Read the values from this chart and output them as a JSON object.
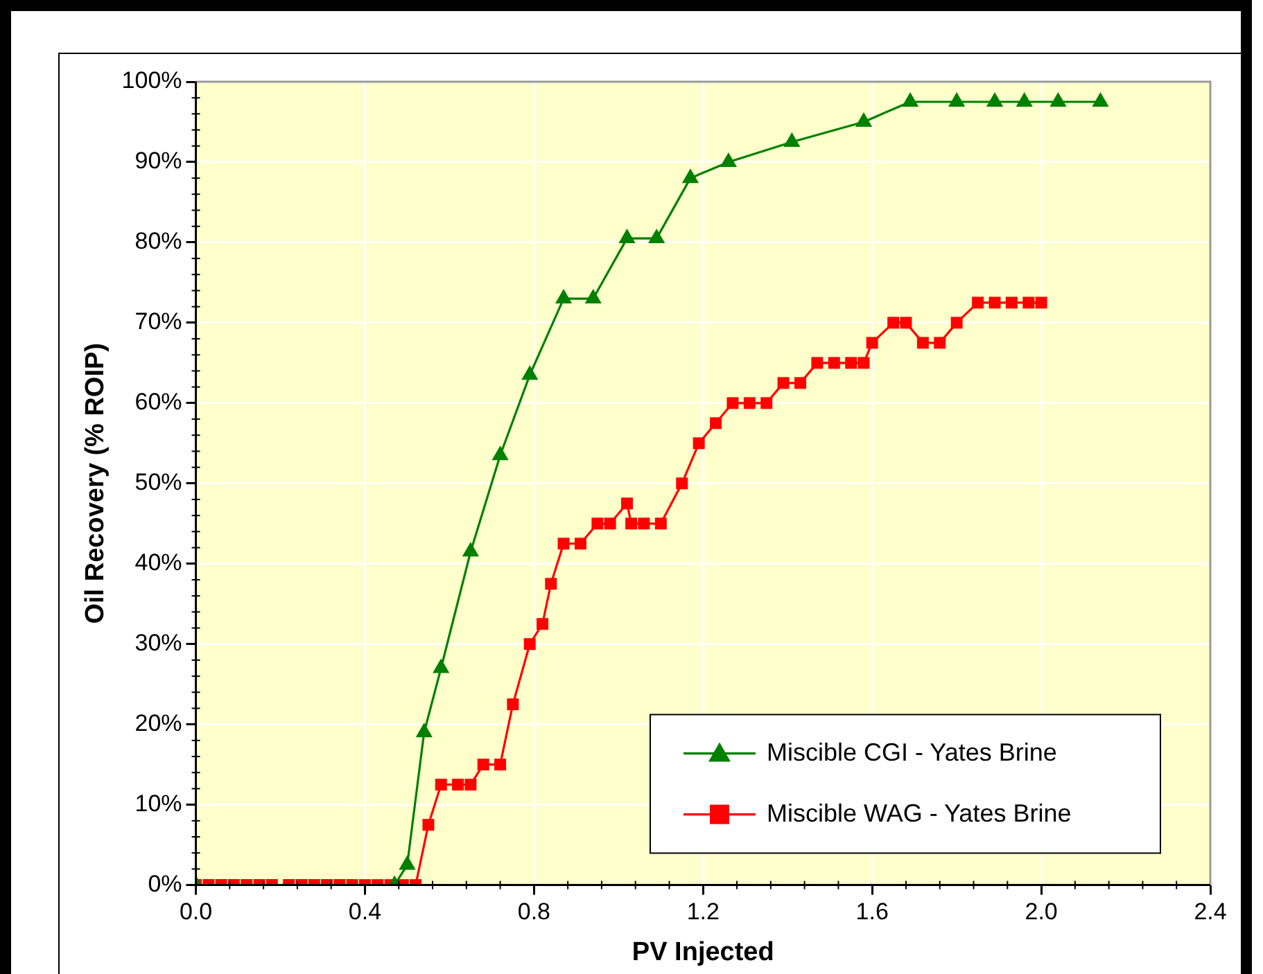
{
  "chart_data": {
    "type": "line",
    "xlabel": "PV Injected",
    "ylabel": "Oil Recovery (% ROIP)",
    "xlim": [
      0,
      2.4
    ],
    "xticks": [
      {
        "value": 0,
        "label": "0.0"
      },
      {
        "value": 0.4,
        "label": "0.4"
      },
      {
        "value": 0.8,
        "label": "0.8"
      },
      {
        "value": 1.2,
        "label": "1.2"
      },
      {
        "value": 1.6,
        "label": "1.6"
      },
      {
        "value": 2.0,
        "label": "2.0"
      },
      {
        "value": 2.4,
        "label": "2.4"
      }
    ],
    "ylim": [
      0,
      100
    ],
    "yticks": [
      {
        "value": 0,
        "label": "0%"
      },
      {
        "value": 10,
        "label": "10%"
      },
      {
        "value": 20,
        "label": "20%"
      },
      {
        "value": 30,
        "label": "30%"
      },
      {
        "value": 40,
        "label": "40%"
      },
      {
        "value": 50,
        "label": "50%"
      },
      {
        "value": 60,
        "label": "60%"
      },
      {
        "value": 70,
        "label": "70%"
      },
      {
        "value": 80,
        "label": "80%"
      },
      {
        "value": 90,
        "label": "90%"
      },
      {
        "value": 100,
        "label": "100%"
      }
    ],
    "grid": true,
    "legend": "bottom right",
    "series": [
      {
        "name": "Miscible CGI - Yates Brine",
        "color": "#008000",
        "marker": "triangle",
        "x": [
          0,
          0.47,
          0.5,
          0.54,
          0.58,
          0.65,
          0.72,
          0.79,
          0.87,
          0.94,
          1.02,
          1.09,
          1.17,
          1.26,
          1.41,
          1.58,
          1.69,
          1.8,
          1.89,
          1.96,
          2.04,
          2.14
        ],
        "values": [
          0,
          0,
          2.5,
          19,
          27,
          41.5,
          53.5,
          63.5,
          73,
          73,
          80.5,
          80.5,
          88,
          90,
          92.5,
          95,
          97.5,
          97.5,
          97.5,
          97.5,
          97.5,
          97.5
        ]
      },
      {
        "name": "Miscible WAG - Yates Brine",
        "color": "#ff0000",
        "marker": "square",
        "x": [
          0,
          0.03,
          0.06,
          0.09,
          0.12,
          0.15,
          0.18,
          0.22,
          0.25,
          0.28,
          0.31,
          0.34,
          0.37,
          0.4,
          0.43,
          0.46,
          0.49,
          0.52,
          0.55,
          0.58,
          0.62,
          0.65,
          0.68,
          0.72,
          0.75,
          0.79,
          0.82,
          0.84,
          0.87,
          0.91,
          0.95,
          0.98,
          1.02,
          1.03,
          1.06,
          1.1,
          1.15,
          1.19,
          1.23,
          1.27,
          1.31,
          1.35,
          1.39,
          1.43,
          1.47,
          1.51,
          1.55,
          1.58,
          1.6,
          1.65,
          1.68,
          1.72,
          1.76,
          1.8,
          1.85,
          1.89,
          1.93,
          1.97,
          2.0
        ],
        "values": [
          0,
          0,
          0,
          0,
          0,
          0,
          0,
          0,
          0,
          0,
          0,
          0,
          0,
          0,
          0,
          0,
          0,
          0,
          7.5,
          12.5,
          12.5,
          12.5,
          15,
          15,
          22.5,
          30,
          32.5,
          37.5,
          42.5,
          42.5,
          45,
          45,
          47.5,
          45,
          45,
          45,
          50,
          55,
          57.5,
          60,
          60,
          60,
          62.5,
          62.5,
          65,
          65,
          65,
          65,
          67.5,
          70,
          70,
          67.5,
          67.5,
          70,
          72.5,
          72.5,
          72.5,
          72.5,
          72.5
        ]
      }
    ]
  }
}
